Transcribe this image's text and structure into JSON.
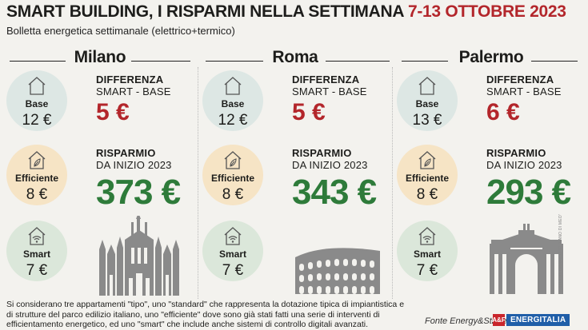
{
  "header": {
    "title_black": "SMART BUILDING, I RISPARMI NELLA SETTIMANA",
    "title_red": "7-13 OTTOBRE 2023",
    "subtitle": "Bolletta energetica settimanale (elettrico+termico)"
  },
  "labels": {
    "base": "Base",
    "efficient": "Efficiente",
    "smart": "Smart",
    "diff_line1": "DIFFERENZA",
    "diff_line2": "SMART - BASE",
    "sav_line1": "RISPARMIO",
    "sav_line2": "DA INIZIO 2023"
  },
  "cities": [
    {
      "name": "Milano",
      "base": "12 €",
      "efficient": "8 €",
      "smart": "7 €",
      "difference": "5 €",
      "savings": "373 €",
      "monument": "milan-cathedral"
    },
    {
      "name": "Roma",
      "base": "12 €",
      "efficient": "8 €",
      "smart": "7 €",
      "difference": "5 €",
      "savings": "343 €",
      "monument": "colosseum"
    },
    {
      "name": "Palermo",
      "base": "13 €",
      "efficient": "8 €",
      "smart": "7 €",
      "difference": "6 €",
      "savings": "293 €",
      "monument": "politeama-theatre"
    }
  ],
  "footnote": "Si considerano tre appartamenti \"tipo\", uno \"standard\" che rappresenta la dotazione tipica di impiantistica e di strutture del parco edilizio italiano, uno \"efficiente\" dove sono già stati fatti una serie di interventi di efficientamento energetico, ed uno \"smart\" che include anche sistemi di controllo digitali avanzati.",
  "credit": "STUDIO GRAFICO 'EL VANO DI MEO'",
  "source": "Fonte Energy&Strategy",
  "logo": {
    "mark": "A&F",
    "name": "ENERGITALIA"
  },
  "colors": {
    "accent_red": "#b3262b",
    "savings_green": "#2e7b3a",
    "base_circle": "#dde7e4",
    "efficient_circle": "#f6e4c5",
    "smart_circle": "#dbe7da"
  }
}
